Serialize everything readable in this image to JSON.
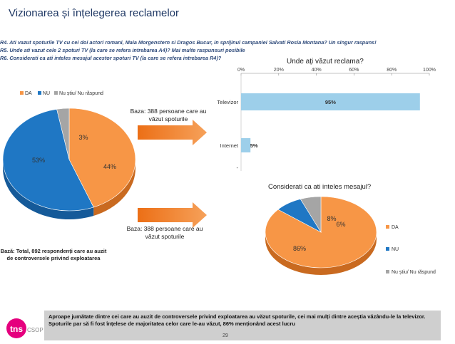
{
  "title": "Vizionarea și înțelegerea reclamelor",
  "questions": [
    "R4. Ati vazut spoturile TV cu cei doi actori romani, Maia Morgenstern si Dragos Bucur, in sprijinul campaniei Salvati Rosia Montana? Un singur raspuns!",
    "R5. Unde ati vazut cele 2 spoturi TV (la care se refera intrebarea A4)? Mai multe raspunsuri posibile",
    "R6. Considerati ca ati inteles mesajul acestor spoturi TV (la care se refera intrebarea R4)?"
  ],
  "base_seen_1": "Baza: 388 persoane care au văzut spoturile",
  "base_seen_2": "Baza: 388 persoane care au văzut spoturile",
  "base_total": "Bază: Total, 892 respondenți care au auzit de controversele privind exploatarea",
  "footer_text": "Aproape jumătate dintre cei care au auzit de controversele privind exploatarea au văzut spoturile, cei mai mulți dintre aceștia văzându-le la televizor. Spoturile par să fi fost înțelese de majoritatea celor care le-au văzut, 86% menționând acest lucru",
  "logo_text": "tns",
  "logo_sub": "CSOP",
  "page_number": "29",
  "colors": {
    "da": "#f79646",
    "nu": "#1f77c4",
    "nustiu": "#a5a5a5",
    "bar": "#9dcfea"
  },
  "chart_data": [
    {
      "type": "pie",
      "title": "",
      "categories": [
        "DA",
        "NU",
        "Nu știu/ Nu răspund"
      ],
      "values": [
        44,
        53,
        3
      ],
      "labels": [
        "44%",
        "53%",
        "3%"
      ],
      "legend": "top"
    },
    {
      "type": "bar",
      "orientation": "horizontal",
      "title": "Unde ați văzut reclama?",
      "categories": [
        "Televizor",
        "Internet",
        "-"
      ],
      "values": [
        95,
        5,
        0
      ],
      "labels": [
        "95%",
        "5%",
        ""
      ],
      "xlim": [
        0,
        100
      ],
      "ticks": [
        "0%",
        "20%",
        "40%",
        "60%",
        "80%",
        "100%"
      ]
    },
    {
      "type": "pie",
      "title": "Considerati ca ati inteles mesajul?",
      "categories": [
        "DA",
        "NU",
        "Nu știu/ Nu răspund"
      ],
      "values": [
        86,
        8,
        6
      ],
      "labels": [
        "86%",
        "8%",
        "6%"
      ],
      "legend": "right"
    }
  ]
}
